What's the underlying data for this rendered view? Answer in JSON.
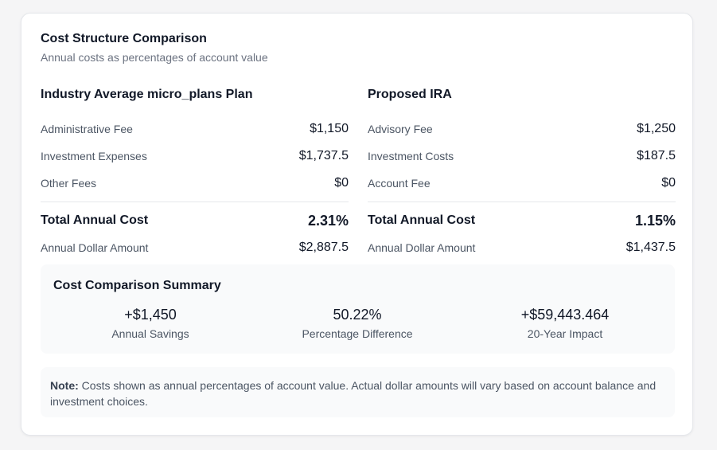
{
  "header": {
    "title": "Cost Structure Comparison",
    "subtitle": "Annual costs as percentages of account value"
  },
  "left": {
    "title": "Industry Average micro_plans Plan",
    "items": [
      {
        "label": "Administrative Fee",
        "value": "$1,150"
      },
      {
        "label": "Investment Expenses",
        "value": "$1,737.5"
      },
      {
        "label": "Other Fees",
        "value": "$0"
      }
    ],
    "total": {
      "label": "Total Annual Cost",
      "value": "2.31%"
    },
    "dollar": {
      "label": "Annual Dollar Amount",
      "value": "$2,887.5"
    }
  },
  "right": {
    "title": "Proposed IRA",
    "items": [
      {
        "label": "Advisory Fee",
        "value": "$1,250"
      },
      {
        "label": "Investment Costs",
        "value": "$187.5"
      },
      {
        "label": "Account Fee",
        "value": "$0"
      }
    ],
    "total": {
      "label": "Total Annual Cost",
      "value": "1.15%"
    },
    "dollar": {
      "label": "Annual Dollar Amount",
      "value": "$1,437.5"
    }
  },
  "summary": {
    "title": "Cost Comparison Summary",
    "stats": [
      {
        "value": "+$1,450",
        "caption": "Annual Savings"
      },
      {
        "value": "50.22%",
        "caption": "Percentage Difference"
      },
      {
        "value": "+$59,443.464",
        "caption": "20-Year Impact"
      }
    ]
  },
  "note": {
    "label": "Note:",
    "text": " Costs shown as annual percentages of account value. Actual dollar amounts will vary based on account balance and investment choices."
  }
}
